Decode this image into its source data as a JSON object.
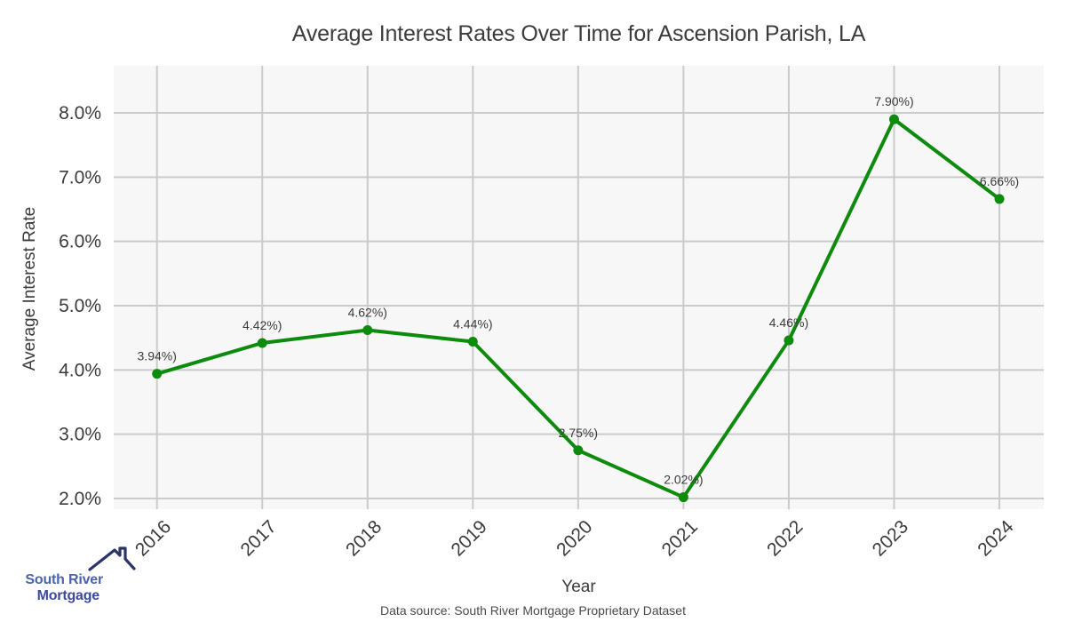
{
  "chart_data": {
    "type": "line",
    "title": "Average Interest Rates Over Time for Ascension Parish, LA",
    "xlabel": "Year",
    "ylabel": "Average Interest Rate",
    "categories": [
      "2016",
      "2017",
      "2018",
      "2019",
      "2020",
      "2021",
      "2022",
      "2023",
      "2024"
    ],
    "series": [
      {
        "name": "Average Interest Rate",
        "values": [
          3.94,
          4.42,
          4.62,
          4.44,
          2.75,
          2.02,
          4.46,
          7.9,
          6.66
        ],
        "color": "#0d8b0d"
      }
    ],
    "point_labels": [
      "3.94%)",
      "4.42%)",
      "4.62%)",
      "4.44%)",
      "2.75%)",
      "2.02%)",
      "4.46%)",
      "7.90%)",
      "6.66%)"
    ],
    "yticks": [
      2,
      3,
      4,
      5,
      6,
      7,
      8
    ],
    "ytick_labels": [
      "2.0%",
      "3.0%",
      "4.0%",
      "5.0%",
      "6.0%",
      "7.0%",
      "8.0%"
    ],
    "ylim": [
      1.83,
      8.73
    ],
    "grid": true,
    "legend": "none",
    "plot_background": "#f7f7f7",
    "gridline_color": "#cbcbcb",
    "tick_label_color": "#3b3b3b",
    "point_label_color": "#3b3b3b"
  },
  "footer": {
    "source": "Data source: South River Mortgage Proprietary Dataset"
  },
  "logo": {
    "line1": "South River",
    "line2": "Mortgage",
    "line1_color": "#4a64ae",
    "line2_color": "#3c4a9e",
    "roof_color": "#2b3468"
  }
}
